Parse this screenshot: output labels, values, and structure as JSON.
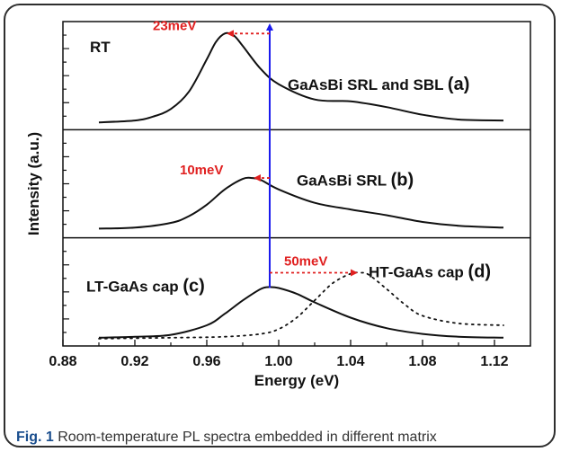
{
  "chart_data": {
    "type": "line",
    "title": "",
    "xlabel": "Energy (eV)",
    "ylabel": "Intensity (a.u.)",
    "xlim": [
      0.88,
      1.14
    ],
    "x_ticks": [
      "0.88",
      "0.92",
      "0.96",
      "1.00",
      "1.04",
      "1.08",
      "1.12"
    ],
    "panels": [
      {
        "label": "GaAsBi SRL and SBL",
        "letter": "(a)",
        "corner_label": "RT",
        "series": [
          {
            "name": "",
            "style": "solid",
            "x": [
              0.9,
              0.92,
              0.93,
              0.94,
              0.95,
              0.96,
              0.965,
              0.97,
              0.975,
              0.98,
              0.99,
              1.0,
              1.02,
              1.04,
              1.06,
              1.08,
              1.1,
              1.125
            ],
            "y": [
              0.02,
              0.04,
              0.08,
              0.16,
              0.34,
              0.68,
              0.86,
              0.95,
              0.93,
              0.82,
              0.58,
              0.42,
              0.26,
              0.24,
              0.18,
              0.1,
              0.05,
              0.04
            ]
          }
        ],
        "peak_shift": "23meV"
      },
      {
        "label": "GaAsBi SRL",
        "letter": "(b)",
        "series": [
          {
            "name": "",
            "style": "solid",
            "x": [
              0.9,
              0.92,
              0.94,
              0.95,
              0.96,
              0.97,
              0.98,
              0.985,
              0.99,
              1.0,
              1.02,
              1.04,
              1.06,
              1.08,
              1.1,
              1.125
            ],
            "y": [
              0.04,
              0.05,
              0.1,
              0.17,
              0.29,
              0.45,
              0.56,
              0.57,
              0.55,
              0.45,
              0.31,
              0.24,
              0.18,
              0.11,
              0.07,
              0.05
            ]
          }
        ],
        "peak_shift": "10meV"
      },
      {
        "label": "LT-GaAs cap",
        "letter": "(c)",
        "label2": "HT-GaAs cap",
        "letter2": "(d)",
        "series": [
          {
            "name": "",
            "style": "solid",
            "x": [
              0.9,
              0.92,
              0.94,
              0.96,
              0.97,
              0.98,
              0.99,
              0.995,
              1.0,
              1.01,
              1.02,
              1.04,
              1.06,
              1.08,
              1.1,
              1.125
            ],
            "y": [
              0.03,
              0.04,
              0.06,
              0.16,
              0.28,
              0.42,
              0.54,
              0.56,
              0.55,
              0.49,
              0.4,
              0.24,
              0.13,
              0.07,
              0.04,
              0.03
            ]
          },
          {
            "name": "",
            "style": "dotted",
            "x": [
              0.9,
              0.94,
              0.97,
              0.99,
              1.0,
              1.01,
              1.02,
              1.03,
              1.04,
              1.045,
              1.05,
              1.06,
              1.07,
              1.08,
              1.1,
              1.125
            ],
            "y": [
              0.02,
              0.03,
              0.04,
              0.07,
              0.12,
              0.24,
              0.42,
              0.6,
              0.7,
              0.71,
              0.69,
              0.54,
              0.38,
              0.26,
              0.18,
              0.16
            ]
          }
        ],
        "peak_shift": "50meV"
      }
    ],
    "reference_line_x": 0.995
  },
  "caption": {
    "prefix": "Fig. 1",
    "text": " Room-temperature PL spectra embedded in different matrix"
  },
  "colors": {
    "curve": "#111111",
    "annotation": "#e02020",
    "reference": "#1a1aee",
    "caption_prefix": "#1a4e8e"
  }
}
